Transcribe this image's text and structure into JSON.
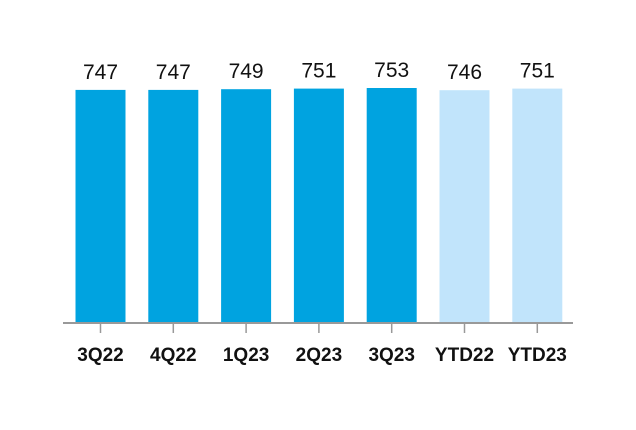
{
  "chart_data": {
    "type": "bar",
    "title": "",
    "xlabel": "",
    "ylabel": "",
    "categories": [
      "3Q22",
      "4Q22",
      "1Q23",
      "2Q23",
      "3Q23",
      "YTD22",
      "YTD23"
    ],
    "values": [
      747,
      747,
      749,
      751,
      753,
      746,
      751
    ],
    "data_labels": [
      "747",
      "747",
      "749",
      "751",
      "753",
      "746",
      "751"
    ],
    "bar_colors": [
      "#00A3E0",
      "#00A3E0",
      "#00A3E0",
      "#00A3E0",
      "#00A3E0",
      "#C1E4FB",
      "#C1E4FB"
    ],
    "axis_color": "#999999",
    "ylim": [
      0,
      753
    ],
    "grid": false,
    "legend": "none"
  }
}
